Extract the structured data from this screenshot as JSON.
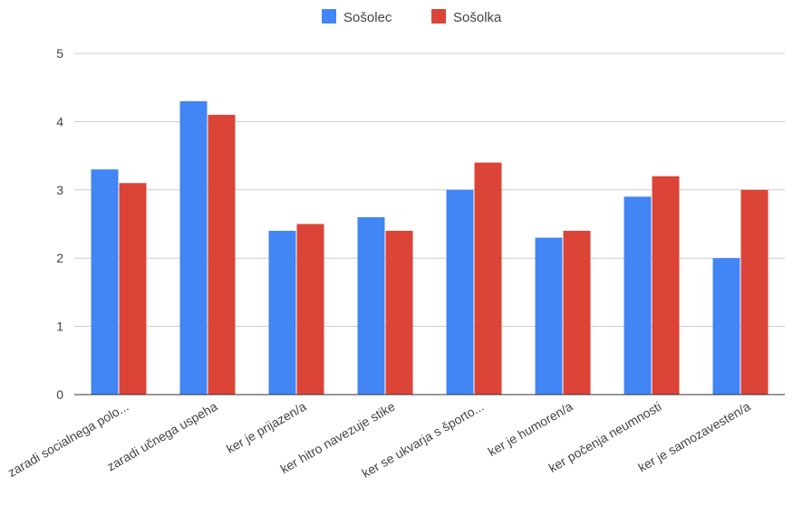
{
  "chart_data": {
    "type": "bar",
    "title": "",
    "xlabel": "",
    "ylabel": "",
    "categories": [
      "zaradi socialnega polo...",
      "zaradi učnega uspeha",
      "ker je prijazen/a",
      "ker hitro navezuje stike",
      "ker se ukvarja s športo...",
      "ker je humoren/a",
      "ker počenja neumnosti",
      "ker je samozavesten/a"
    ],
    "series": [
      {
        "name": "Sošolec",
        "color": "#4285f4",
        "values": [
          3.3,
          4.3,
          2.4,
          2.6,
          3.0,
          2.3,
          2.9,
          2.0
        ]
      },
      {
        "name": "Sošolka",
        "color": "#db4437",
        "values": [
          3.1,
          4.1,
          2.5,
          2.4,
          3.4,
          2.4,
          3.2,
          3.0
        ]
      }
    ],
    "ylim": [
      0,
      5
    ],
    "yticks": [
      0,
      1,
      2,
      3,
      4,
      5
    ],
    "grid": true,
    "legend": "top-center"
  }
}
